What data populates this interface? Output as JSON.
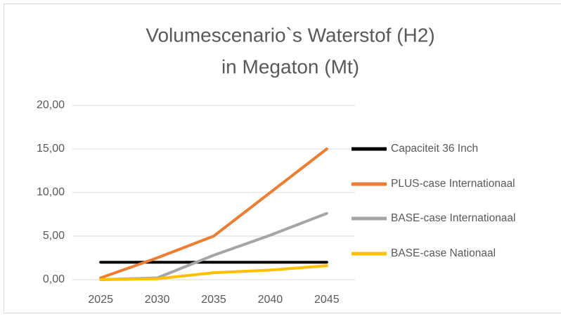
{
  "chart_data": {
    "type": "line",
    "title": "Volumescenario`s Waterstof (H2)",
    "subtitle": "in Megaton (Mt)",
    "categories": [
      "2025",
      "2030",
      "2035",
      "2040",
      "2045"
    ],
    "series": [
      {
        "name": "Capaciteit 36 Inch",
        "color": "#000000",
        "values": [
          2.0,
          2.0,
          2.0,
          2.0,
          2.0
        ]
      },
      {
        "name": "PLUS-case Internationaal",
        "color": "#ed7d31",
        "values": [
          0.2,
          2.5,
          5.0,
          10.0,
          15.0
        ]
      },
      {
        "name": "BASE-case Internationaal",
        "color": "#a5a5a5",
        "values": [
          0.0,
          0.2,
          2.8,
          5.1,
          7.6
        ]
      },
      {
        "name": "BASE-case Nationaal",
        "color": "#ffc000",
        "values": [
          0.0,
          0.1,
          0.8,
          1.1,
          1.6
        ]
      }
    ],
    "ylim": [
      0,
      20
    ],
    "yticks": [
      {
        "value": 0,
        "label": "0,00"
      },
      {
        "value": 5,
        "label": "5,00"
      },
      {
        "value": 10,
        "label": "10,00"
      },
      {
        "value": 15,
        "label": "15,00"
      },
      {
        "value": 20,
        "label": "20,00"
      }
    ],
    "grid": true,
    "legend": "right"
  }
}
